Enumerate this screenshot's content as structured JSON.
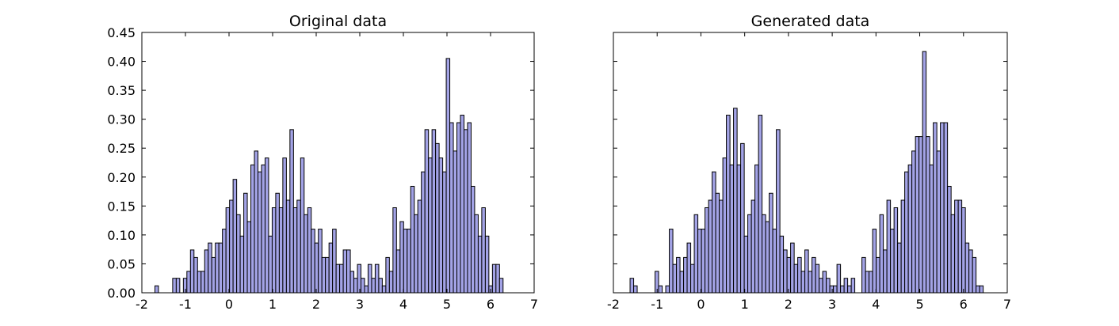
{
  "chart_data": [
    {
      "type": "histogram",
      "title": "Original data",
      "color": "#a3a3e6",
      "edgecolor": "#000000",
      "xlim": [
        -2,
        7
      ],
      "xticks": [
        -2,
        -1,
        0,
        1,
        2,
        3,
        4,
        5,
        6,
        7
      ],
      "ylim": [
        0,
        0.45
      ],
      "yticks": [
        {
          "value": 0,
          "label": "0.00"
        },
        {
          "value": 0.05,
          "label": "0.05"
        },
        {
          "value": 0.1,
          "label": "0.10"
        },
        {
          "value": 0.15,
          "label": "0.15"
        },
        {
          "value": 0.2,
          "label": "0.20"
        },
        {
          "value": 0.25,
          "label": "0.25"
        },
        {
          "value": 0.3,
          "label": "0.30"
        },
        {
          "value": 0.35,
          "label": "0.35"
        },
        {
          "value": 0.4,
          "label": "0.40"
        },
        {
          "value": 0.45,
          "label": "0.45"
        }
      ],
      "bins": [
        -1.7,
        -1.619,
        -1.537,
        -1.456,
        -1.374,
        -1.293,
        -1.211,
        -1.13,
        -1.048,
        -0.967,
        -0.885,
        -0.804,
        -0.722,
        -0.641,
        -0.559,
        -0.478,
        -0.396,
        -0.315,
        -0.233,
        -0.152,
        -0.07,
        0.012,
        0.093,
        0.175,
        0.256,
        0.338,
        0.419,
        0.501,
        0.582,
        0.664,
        0.745,
        0.827,
        0.908,
        0.99,
        1.071,
        1.153,
        1.234,
        1.316,
        1.397,
        1.479,
        1.56,
        1.642,
        1.723,
        1.805,
        1.886,
        1.968,
        2.049,
        2.131,
        2.212,
        2.294,
        2.375,
        2.457,
        2.538,
        2.62,
        2.701,
        2.783,
        2.864,
        2.946,
        3.027,
        3.109,
        3.19,
        3.272,
        3.353,
        3.435,
        3.516,
        3.598,
        3.679,
        3.761,
        3.842,
        3.924,
        4.005,
        4.087,
        4.168,
        4.25,
        4.331,
        4.413,
        4.494,
        4.576,
        4.657,
        4.739,
        4.82,
        4.902,
        4.983,
        5.065,
        5.146,
        5.228,
        5.309,
        5.391,
        5.472,
        5.554,
        5.635,
        5.717,
        5.798,
        5.88,
        5.961,
        6.043,
        6.124,
        6.206,
        6.287,
        6.369,
        6.45
      ],
      "values": [
        0.012,
        0,
        0,
        0,
        0,
        0.025,
        0.025,
        0,
        0.025,
        0.037,
        0.074,
        0.061,
        0.037,
        0.037,
        0.074,
        0.086,
        0.061,
        0.086,
        0.086,
        0.11,
        0.147,
        0.16,
        0.196,
        0.135,
        0.098,
        0.172,
        0.123,
        0.221,
        0.245,
        0.209,
        0.221,
        0.233,
        0.098,
        0.147,
        0.172,
        0.147,
        0.233,
        0.16,
        0.282,
        0.147,
        0.16,
        0.233,
        0.135,
        0.147,
        0.11,
        0.086,
        0.11,
        0.061,
        0.061,
        0.086,
        0.11,
        0.049,
        0.049,
        0.074,
        0.074,
        0.037,
        0.025,
        0.049,
        0.025,
        0.012,
        0.049,
        0.025,
        0.049,
        0.025,
        0.012,
        0.061,
        0.037,
        0.147,
        0.074,
        0.123,
        0.11,
        0.11,
        0.184,
        0.135,
        0.16,
        0.209,
        0.282,
        0.233,
        0.282,
        0.258,
        0.233,
        0.209,
        0.405,
        0.294,
        0.245,
        0.294,
        0.307,
        0.282,
        0.294,
        0.184,
        0.135,
        0.098,
        0.147,
        0.098,
        0.012,
        0.049,
        0.049,
        0.025,
        0,
        0
      ]
    },
    {
      "type": "histogram",
      "title": "Generated data",
      "color": "#a3a3e6",
      "edgecolor": "#000000",
      "xlim": [
        -2,
        7
      ],
      "xticks": [
        -2,
        -1,
        0,
        1,
        2,
        3,
        4,
        5,
        6,
        7
      ],
      "ylim": [
        0,
        0.45
      ],
      "yticks": [
        0,
        0.05,
        0.1,
        0.15,
        0.2,
        0.25,
        0.3,
        0.35,
        0.4,
        0.45
      ],
      "bins": [
        -1.7,
        -1.619,
        -1.537,
        -1.456,
        -1.374,
        -1.293,
        -1.211,
        -1.13,
        -1.048,
        -0.967,
        -0.885,
        -0.804,
        -0.722,
        -0.641,
        -0.559,
        -0.478,
        -0.396,
        -0.315,
        -0.233,
        -0.152,
        -0.07,
        0.012,
        0.093,
        0.175,
        0.256,
        0.338,
        0.419,
        0.501,
        0.582,
        0.664,
        0.745,
        0.827,
        0.908,
        0.99,
        1.071,
        1.153,
        1.234,
        1.316,
        1.397,
        1.479,
        1.56,
        1.642,
        1.723,
        1.805,
        1.886,
        1.968,
        2.049,
        2.131,
        2.212,
        2.294,
        2.375,
        2.457,
        2.538,
        2.62,
        2.701,
        2.783,
        2.864,
        2.946,
        3.027,
        3.109,
        3.19,
        3.272,
        3.353,
        3.435,
        3.516,
        3.598,
        3.679,
        3.761,
        3.842,
        3.924,
        4.005,
        4.087,
        4.168,
        4.25,
        4.331,
        4.413,
        4.494,
        4.576,
        4.657,
        4.739,
        4.82,
        4.902,
        4.983,
        5.065,
        5.146,
        5.228,
        5.309,
        5.391,
        5.472,
        5.554,
        5.635,
        5.717,
        5.798,
        5.88,
        5.961,
        6.043,
        6.124,
        6.206,
        6.287,
        6.369,
        6.45
      ],
      "values": [
        0,
        0.025,
        0.012,
        0,
        0,
        0,
        0,
        0,
        0.037,
        0.012,
        0,
        0.012,
        0.11,
        0.049,
        0.061,
        0.037,
        0.061,
        0.086,
        0.049,
        0.135,
        0.11,
        0.11,
        0.147,
        0.16,
        0.209,
        0.172,
        0.16,
        0.233,
        0.307,
        0.221,
        0.319,
        0.221,
        0.258,
        0.098,
        0.135,
        0.16,
        0.221,
        0.307,
        0.135,
        0.123,
        0.172,
        0.11,
        0.282,
        0.098,
        0.074,
        0.061,
        0.086,
        0.049,
        0.061,
        0.037,
        0.074,
        0.037,
        0.061,
        0.049,
        0.025,
        0.037,
        0.025,
        0.012,
        0.012,
        0.049,
        0.012,
        0.025,
        0.012,
        0.025,
        0,
        0,
        0.061,
        0.037,
        0.037,
        0.11,
        0.061,
        0.135,
        0.074,
        0.16,
        0.11,
        0.147,
        0.086,
        0.16,
        0.209,
        0.221,
        0.245,
        0.27,
        0.27,
        0.417,
        0.27,
        0.221,
        0.294,
        0.245,
        0.294,
        0.294,
        0.184,
        0.135,
        0.16,
        0.16,
        0.147,
        0.086,
        0.074,
        0.061,
        0.012,
        0.012
      ]
    }
  ]
}
